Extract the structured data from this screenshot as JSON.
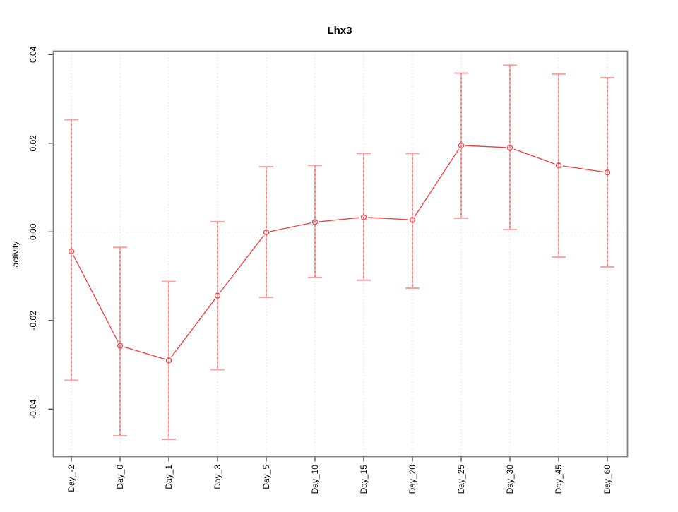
{
  "chart_data": {
    "type": "line",
    "title": "Lhx3",
    "xlabel": "",
    "ylabel": "activity",
    "categories": [
      "Day_-2",
      "Day_0",
      "Day_1",
      "Day_3",
      "Day_5",
      "Day_10",
      "Day_15",
      "Day_20",
      "Day_25",
      "Day_30",
      "Day_45",
      "Day_60"
    ],
    "series": [
      {
        "name": "activity",
        "values": [
          -0.0044,
          -0.0257,
          -0.029,
          -0.0144,
          -0.0001,
          0.0022,
          0.0033,
          0.0027,
          0.0195,
          0.019,
          0.015,
          0.0134
        ],
        "upper": [
          0.0253,
          -0.0035,
          -0.0112,
          0.0023,
          0.0147,
          0.015,
          0.0177,
          0.0177,
          0.0358,
          0.0376,
          0.0356,
          0.0348
        ],
        "lower": [
          -0.0335,
          -0.046,
          -0.0468,
          -0.0311,
          -0.0148,
          -0.0103,
          -0.0109,
          -0.0127,
          0.0031,
          0.0005,
          -0.0057,
          -0.0079
        ]
      }
    ],
    "yticks": [
      -0.04,
      -0.02,
      0.0,
      0.02,
      0.04
    ],
    "ytick_labels": [
      "-0.04",
      "-0.02",
      "0.00",
      "0.02",
      "0.04"
    ],
    "ylim": [
      -0.0506,
      0.0408
    ],
    "grid": {
      "vertical": "dotted line at every category",
      "horizontal": "dotted line at zero only"
    },
    "legend": "none",
    "marker": "open-circle",
    "colors": {
      "line": "#f23c3c",
      "marker": "#f23c3c",
      "error_bar": "#ffa0a0",
      "error_bar_dash": "#e93434",
      "grid": "#d9d9d9",
      "box": "#808080",
      "tick": "#404040",
      "text": "#000000",
      "background": "#ffffff"
    }
  }
}
